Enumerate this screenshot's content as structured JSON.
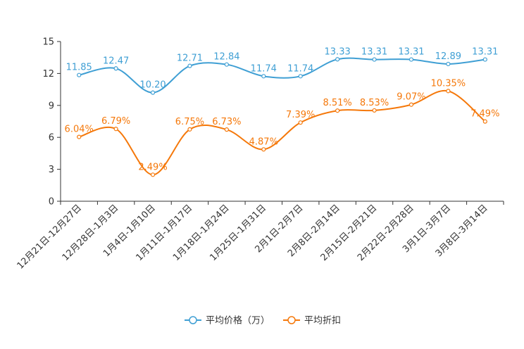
{
  "chart_data": {
    "type": "line",
    "title": "",
    "xlabel": "",
    "ylabel": "",
    "ylim": [
      0,
      15
    ],
    "yticks": [
      0,
      3,
      6,
      9,
      12,
      15
    ],
    "grid": false,
    "legend_position": "bottom-center",
    "smooth": true,
    "categories": [
      "12月21日-12月27日",
      "12月28日-1月3日",
      "1月4日-1月10日",
      "1月11日-1月17日",
      "1月18日-1月24日",
      "1月25日-1月31日",
      "2月1日-2月7日",
      "2月8日-2月14日",
      "2月15日-2月21日",
      "2月22日-2月28日",
      "3月1日-3月7日",
      "3月8日-3月14日"
    ],
    "series": [
      {
        "name": "平均价格（万）",
        "color": "#3f9fd4",
        "values": [
          11.85,
          12.47,
          10.2,
          12.71,
          12.84,
          11.74,
          11.74,
          13.33,
          13.31,
          13.31,
          12.89,
          13.31
        ],
        "labels": [
          "11.85",
          "12.47",
          "10.20",
          "12.71",
          "12.84",
          "11.74",
          "11.74",
          "13.33",
          "13.31",
          "13.31",
          "12.89",
          "13.31"
        ]
      },
      {
        "name": "平均折扣",
        "color": "#f5780a",
        "values": [
          6.04,
          6.79,
          2.49,
          6.75,
          6.73,
          4.87,
          7.39,
          8.51,
          8.53,
          9.07,
          10.35,
          7.49
        ],
        "labels": [
          "6.04%",
          "6.79%",
          "2.49%",
          "6.75%",
          "6.73%",
          "4.87%",
          "7.39%",
          "8.51%",
          "8.53%",
          "9.07%",
          "10.35%",
          "7.49%"
        ]
      }
    ]
  }
}
